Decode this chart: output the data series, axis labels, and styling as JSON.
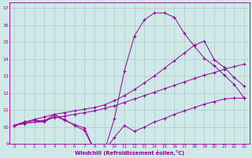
{
  "xlabel": "Windchill (Refroidissement éolien,°C)",
  "ylabel": "",
  "background_color": "#cfe8e8",
  "line_color": "#990099",
  "grid_color": "#b0c8c8",
  "xlim": [
    -0.5,
    23.5
  ],
  "ylim": [
    9,
    17.3
  ],
  "xticks": [
    0,
    1,
    2,
    3,
    4,
    5,
    6,
    7,
    8,
    9,
    10,
    11,
    12,
    13,
    14,
    15,
    16,
    17,
    18,
    19,
    20,
    21,
    22,
    23
  ],
  "yticks": [
    9,
    10,
    11,
    12,
    13,
    14,
    15,
    16,
    17
  ],
  "curve1_x": [
    0,
    1,
    2,
    3,
    4,
    5,
    6,
    7,
    8,
    9,
    10,
    11,
    12,
    13,
    14,
    15,
    16,
    17,
    18,
    19,
    20,
    21,
    22,
    23
  ],
  "curve1_y": [
    10.1,
    10.25,
    10.3,
    10.3,
    10.65,
    10.4,
    10.15,
    9.95,
    8.65,
    8.6,
    9.4,
    10.1,
    9.75,
    10.0,
    10.3,
    10.5,
    10.75,
    10.95,
    11.15,
    11.35,
    11.5,
    11.65,
    11.7,
    11.7
  ],
  "curve2_x": [
    0,
    1,
    2,
    3,
    4,
    5,
    6,
    7,
    8,
    9,
    10,
    11,
    12,
    13,
    14,
    15,
    16,
    17,
    18,
    19,
    20,
    21,
    22,
    23
  ],
  "curve2_y": [
    10.1,
    10.2,
    10.3,
    10.4,
    10.55,
    10.65,
    10.75,
    10.85,
    10.95,
    11.1,
    11.25,
    11.45,
    11.65,
    11.85,
    12.05,
    12.25,
    12.45,
    12.65,
    12.85,
    13.05,
    13.2,
    13.4,
    13.55,
    13.7
  ],
  "curve3_x": [
    0,
    1,
    2,
    3,
    4,
    5,
    6,
    7,
    8,
    9,
    10,
    11,
    12,
    13,
    14,
    15,
    16,
    17,
    18,
    19,
    20,
    21,
    22,
    23
  ],
  "curve3_y": [
    10.1,
    10.3,
    10.45,
    10.6,
    10.75,
    10.85,
    10.95,
    11.05,
    11.15,
    11.3,
    11.55,
    11.85,
    12.2,
    12.6,
    13.0,
    13.45,
    13.9,
    14.35,
    14.8,
    15.05,
    13.95,
    13.5,
    12.9,
    12.4
  ],
  "curve4_x": [
    0,
    1,
    2,
    3,
    4,
    5,
    6,
    7,
    8,
    9,
    10,
    11,
    12,
    13,
    14,
    15,
    16,
    17,
    18,
    19,
    20,
    21,
    22,
    23
  ],
  "curve4_y": [
    10.1,
    10.3,
    10.4,
    10.35,
    10.75,
    10.45,
    10.1,
    9.8,
    8.65,
    8.6,
    10.5,
    13.3,
    15.35,
    16.3,
    16.7,
    16.7,
    16.45,
    15.5,
    14.75,
    14.05,
    13.6,
    13.05,
    12.5,
    11.7
  ]
}
